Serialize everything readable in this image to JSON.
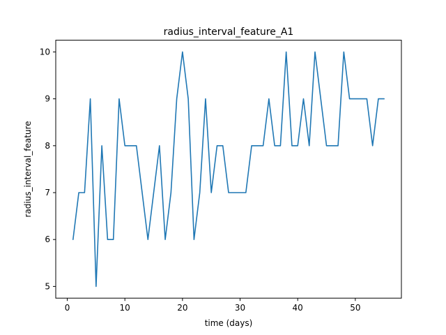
{
  "chart_data": {
    "type": "line",
    "title": "radius_interval_feature_A1",
    "xlabel": "time (days)",
    "ylabel": "radius_interval_feature",
    "xlim": [
      -2,
      58
    ],
    "ylim": [
      4.75,
      10.25
    ],
    "xticks": [
      0,
      10,
      20,
      30,
      40,
      50
    ],
    "yticks": [
      5,
      6,
      7,
      8,
      9,
      10
    ],
    "grid": false,
    "series": [
      {
        "color": "#1f77b4",
        "x": [
          1,
          2,
          3,
          4,
          5,
          6,
          7,
          8,
          9,
          10,
          11,
          12,
          13,
          14,
          15,
          16,
          17,
          18,
          19,
          20,
          21,
          22,
          23,
          24,
          25,
          26,
          27,
          28,
          29,
          30,
          31,
          32,
          33,
          34,
          35,
          36,
          37,
          38,
          39,
          40,
          41,
          42,
          43,
          44,
          45,
          46,
          47,
          48,
          49,
          50,
          51,
          52,
          53,
          54,
          55
        ],
        "y": [
          6,
          7,
          7,
          9,
          5,
          8,
          6,
          6,
          9,
          8,
          8,
          8,
          7,
          6,
          7,
          8,
          6,
          7,
          9,
          10,
          9,
          6,
          7,
          9,
          7,
          8,
          8,
          7,
          7,
          7,
          7,
          8,
          8,
          8,
          9,
          8,
          8,
          10,
          8,
          8,
          9,
          8,
          10,
          9,
          8,
          8,
          8,
          10,
          9,
          9,
          9,
          9,
          8,
          9,
          9
        ]
      }
    ]
  }
}
